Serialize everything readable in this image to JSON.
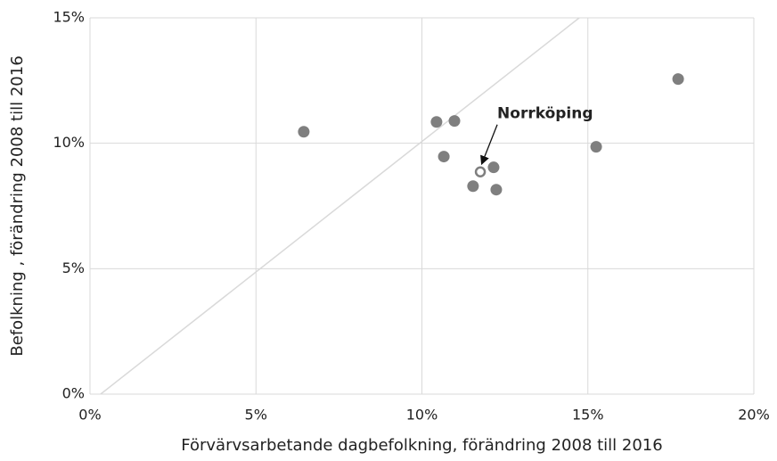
{
  "chart_data": {
    "type": "scatter",
    "x_label": "Förvärvsarbetande dagbefolkning, förändring 2008 till 2016",
    "y_label": "Befolkning , förändring 2008 till 2016",
    "x": [
      6.44,
      10.44,
      10.98,
      10.66,
      12.16,
      11.54,
      12.24,
      15.25,
      17.72
    ],
    "values": [
      10.46,
      10.85,
      10.89,
      9.47,
      9.04,
      8.29,
      8.15,
      9.86,
      12.56
    ],
    "color": "#7f7f7f",
    "highlight": {
      "x": 11.76,
      "y": 8.86,
      "label": "Norrköping"
    },
    "reference_line": {
      "x": [
        0.32,
        14.74
      ],
      "y": [
        0,
        15
      ],
      "color": "#d9d9d9"
    },
    "xlim": [
      0,
      20
    ],
    "ylim": [
      0,
      15
    ],
    "xticks": [
      {
        "value": 0,
        "label": "0%"
      },
      {
        "value": 5,
        "label": "5%"
      },
      {
        "value": 10,
        "label": "10%"
      },
      {
        "value": 15,
        "label": "15%"
      },
      {
        "value": 20,
        "label": "20%"
      }
    ],
    "yticks": [
      {
        "value": 0,
        "label": "0%"
      },
      {
        "value": 5,
        "label": "5%"
      },
      {
        "value": 10,
        "label": "10%"
      },
      {
        "value": 15,
        "label": "15%"
      }
    ],
    "grid": true
  }
}
